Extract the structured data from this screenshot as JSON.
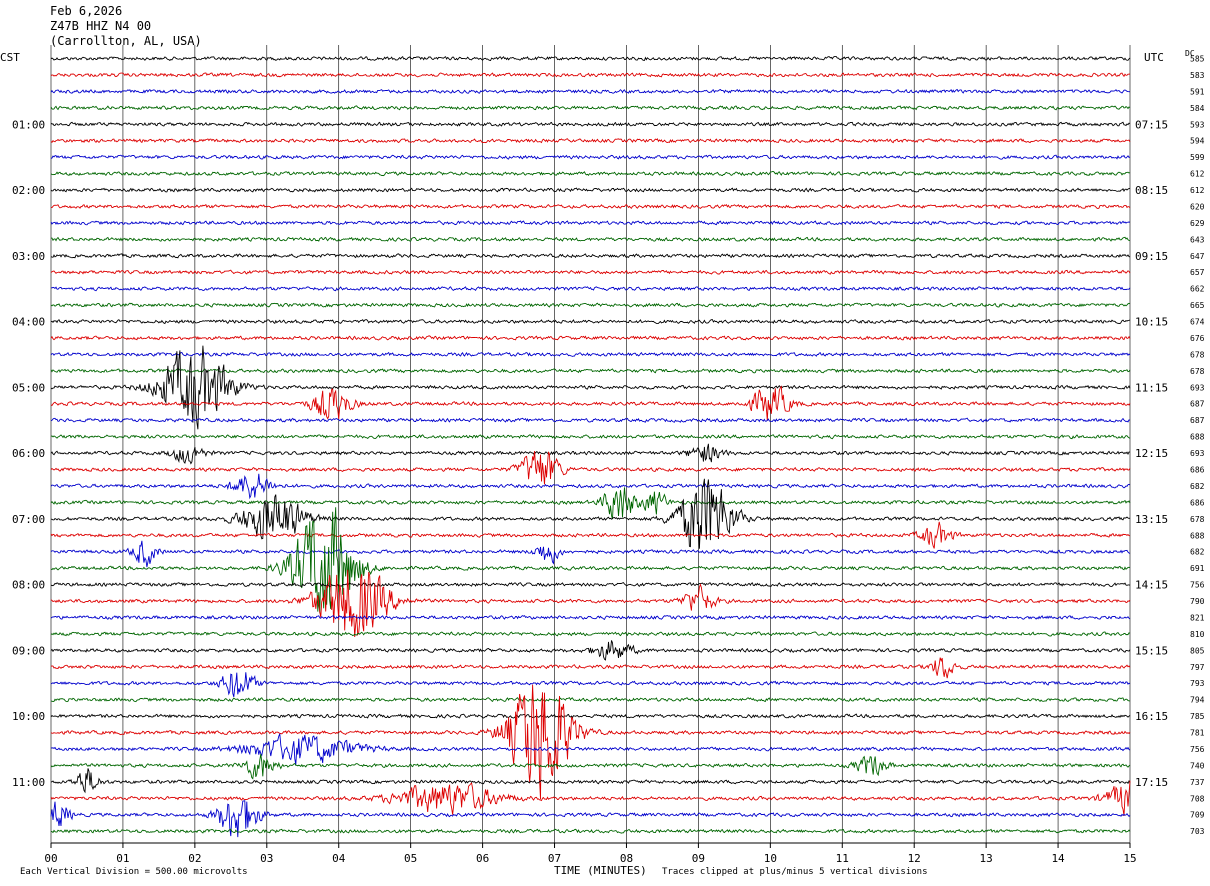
{
  "header": {
    "date": "Feb 6,2026",
    "station": "Z47B HHZ N4 00",
    "location": "(Carrollton, AL, USA)"
  },
  "left_zone": "CST",
  "right_zone": "UTC",
  "dc_label": "DC",
  "footer": {
    "scale_note": "Each Vertical Division =  500.00 microvolts",
    "xlabel": "TIME (MINUTES)",
    "clip_note": "Traces clipped at plus/minus 5 vertical divisions"
  },
  "colors": {
    "trace_cycle": [
      "#000000",
      "#dd0000",
      "#0000cc",
      "#006600"
    ],
    "grid": "#000000"
  },
  "chart_data": {
    "type": "line",
    "title": "Z47B HHZ N4 00",
    "xlabel": "TIME (MINUTES)",
    "xlim": [
      0,
      15
    ],
    "x_ticks": [
      "00",
      "01",
      "02",
      "03",
      "04",
      "05",
      "06",
      "07",
      "08",
      "09",
      "10",
      "11",
      "12",
      "13",
      "14",
      "15"
    ],
    "trace_minutes_each": 15,
    "left_hour_labels": [
      "01:00",
      "02:00",
      "03:00",
      "04:00",
      "05:00",
      "06:00",
      "07:00",
      "08:00",
      "09:00",
      "10:00",
      "11:00"
    ],
    "right_hour_labels": [
      "07:15",
      "08:15",
      "09:15",
      "10:15",
      "11:15",
      "12:15",
      "13:15",
      "14:15",
      "15:15",
      "16:15",
      "17:15"
    ],
    "dc_offsets": [
      585,
      583,
      591,
      584,
      593,
      594,
      599,
      612,
      612,
      620,
      629,
      643,
      647,
      657,
      662,
      665,
      674,
      676,
      678,
      678,
      693,
      687,
      687,
      688,
      693,
      686,
      682,
      686,
      678,
      688,
      682,
      691,
      756,
      790,
      821,
      810,
      805,
      797,
      793,
      794,
      785,
      781,
      756,
      740,
      737,
      708,
      709,
      703
    ],
    "events": [
      {
        "trace": 20,
        "minute": 2.0,
        "amp": 2.4,
        "dur": 0.9
      },
      {
        "trace": 21,
        "minute": 3.9,
        "amp": 1.0,
        "dur": 0.5
      },
      {
        "trace": 21,
        "minute": 10.0,
        "amp": 1.0,
        "dur": 0.5
      },
      {
        "trace": 24,
        "minute": 1.9,
        "amp": 0.6,
        "dur": 0.4
      },
      {
        "trace": 24,
        "minute": 9.1,
        "amp": 0.6,
        "dur": 0.4
      },
      {
        "trace": 25,
        "minute": 6.8,
        "amp": 1.3,
        "dur": 0.5
      },
      {
        "trace": 26,
        "minute": 2.8,
        "amp": 0.8,
        "dur": 0.5
      },
      {
        "trace": 27,
        "minute": 7.9,
        "amp": 1.2,
        "dur": 0.4
      },
      {
        "trace": 27,
        "minute": 8.4,
        "amp": 0.7,
        "dur": 0.3
      },
      {
        "trace": 28,
        "minute": 3.1,
        "amp": 1.5,
        "dur": 0.8
      },
      {
        "trace": 28,
        "minute": 9.1,
        "amp": 2.6,
        "dur": 0.7
      },
      {
        "trace": 29,
        "minute": 12.3,
        "amp": 0.7,
        "dur": 0.4
      },
      {
        "trace": 30,
        "minute": 1.3,
        "amp": 0.8,
        "dur": 0.3
      },
      {
        "trace": 30,
        "minute": 6.9,
        "amp": 0.7,
        "dur": 0.3
      },
      {
        "trace": 31,
        "minute": 3.8,
        "amp": 3.6,
        "dur": 0.8
      },
      {
        "trace": 33,
        "minute": 4.2,
        "amp": 2.4,
        "dur": 0.9
      },
      {
        "trace": 33,
        "minute": 9.0,
        "amp": 0.8,
        "dur": 0.4
      },
      {
        "trace": 36,
        "minute": 7.8,
        "amp": 0.6,
        "dur": 0.5
      },
      {
        "trace": 37,
        "minute": 12.4,
        "amp": 0.7,
        "dur": 0.3
      },
      {
        "trace": 38,
        "minute": 2.6,
        "amp": 1.0,
        "dur": 0.4
      },
      {
        "trace": 41,
        "minute": 6.8,
        "amp": 3.8,
        "dur": 0.8
      },
      {
        "trace": 42,
        "minute": 3.5,
        "amp": 0.8,
        "dur": 1.4
      },
      {
        "trace": 43,
        "minute": 2.9,
        "amp": 0.8,
        "dur": 0.4
      },
      {
        "trace": 43,
        "minute": 11.4,
        "amp": 0.6,
        "dur": 0.4
      },
      {
        "trace": 44,
        "minute": 0.5,
        "amp": 0.8,
        "dur": 0.3
      },
      {
        "trace": 45,
        "minute": 5.5,
        "amp": 0.9,
        "dur": 1.3
      },
      {
        "trace": 45,
        "minute": 15.0,
        "amp": 1.0,
        "dur": 0.6
      },
      {
        "trace": 46,
        "minute": 2.6,
        "amp": 1.5,
        "dur": 0.5
      },
      {
        "trace": 46,
        "minute": 0.1,
        "amp": 0.8,
        "dur": 0.3
      }
    ]
  }
}
